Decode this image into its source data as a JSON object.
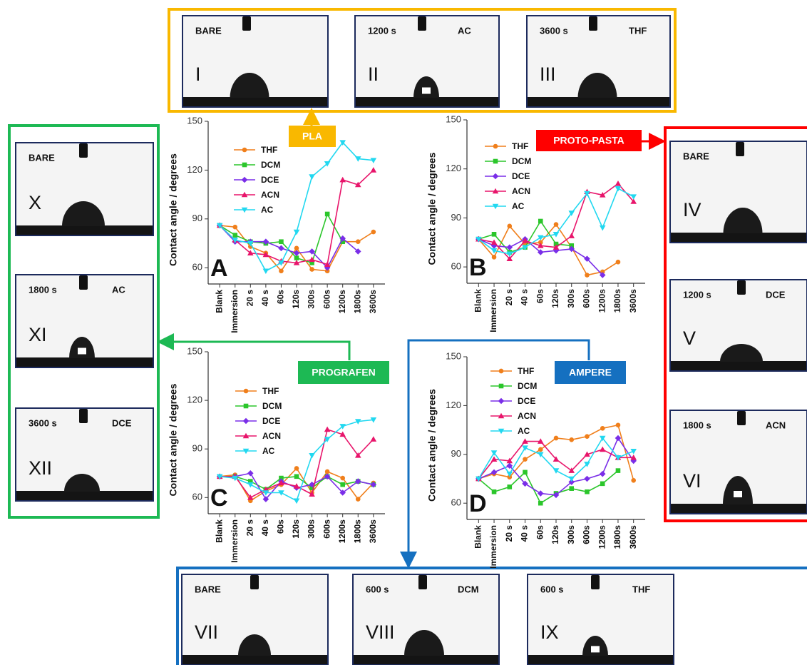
{
  "chart_data": [
    {
      "type": "line",
      "panel": "A",
      "tag": "PLA",
      "tag_color": "#f9b800",
      "y_label": "Contact angle / degrees",
      "categories": [
        "Blank",
        "Immersion",
        "20 s",
        "40 s",
        "60s",
        "120s",
        "300s",
        "600s",
        "1200s",
        "1800s",
        "3600s"
      ],
      "ylim": [
        50,
        150
      ],
      "yticks": [
        60,
        90,
        120,
        150
      ],
      "series": [
        {
          "name": "THF",
          "color": "#f07f1b",
          "marker": "circle",
          "values": [
            86,
            85,
            73,
            69,
            58,
            72,
            59,
            58,
            76,
            76,
            82
          ]
        },
        {
          "name": "DCM",
          "color": "#2bc62b",
          "marker": "square",
          "values": [
            86,
            80,
            76,
            75,
            76,
            66,
            63,
            93,
            76,
            null,
            null
          ]
        },
        {
          "name": "DCE",
          "color": "#7a2ee8",
          "marker": "diamond",
          "values": [
            86,
            76,
            76,
            76,
            72,
            69,
            70,
            60,
            78,
            70,
            null
          ]
        },
        {
          "name": "ACN",
          "color": "#e8156b",
          "marker": "triangle",
          "values": [
            86,
            77,
            69,
            68,
            64,
            63,
            65,
            62,
            114,
            111,
            120
          ]
        },
        {
          "name": "AC",
          "color": "#22d8f0",
          "marker": "triangle-down",
          "values": [
            86,
            77,
            75,
            58,
            63,
            82,
            116,
            124,
            137,
            127,
            126
          ]
        }
      ]
    },
    {
      "type": "line",
      "panel": "B",
      "tag": "PROTO-PASTA",
      "tag_color": "#ff0000",
      "y_label": "Contact angle / degrees",
      "categories": [
        "Blank",
        "Immersion",
        "20 s",
        "40 s",
        "60s",
        "120s",
        "300s",
        "600s",
        "1200s",
        "1800s",
        "3600s"
      ],
      "ylim": [
        50,
        150
      ],
      "yticks": [
        60,
        90,
        120,
        150
      ],
      "series": [
        {
          "name": "THF",
          "color": "#f07f1b",
          "marker": "circle",
          "values": [
            77,
            66,
            85,
            74,
            75,
            86,
            72,
            55,
            57,
            63,
            null
          ]
        },
        {
          "name": "DCM",
          "color": "#2bc62b",
          "marker": "square",
          "values": [
            77,
            80,
            69,
            72,
            88,
            74,
            73,
            null,
            null,
            null,
            null
          ]
        },
        {
          "name": "DCE",
          "color": "#7a2ee8",
          "marker": "diamond",
          "values": [
            77,
            73,
            72,
            77,
            69,
            70,
            71,
            65,
            55,
            null,
            null
          ]
        },
        {
          "name": "ACN",
          "color": "#e8156b",
          "marker": "triangle",
          "values": [
            77,
            75,
            65,
            76,
            73,
            72,
            79,
            106,
            104,
            111,
            100
          ]
        },
        {
          "name": "AC",
          "color": "#22d8f0",
          "marker": "triangle-down",
          "values": [
            77,
            70,
            68,
            72,
            78,
            80,
            93,
            105,
            84,
            108,
            103
          ]
        }
      ]
    },
    {
      "type": "line",
      "panel": "C",
      "tag": "PROGRAFEN",
      "tag_color": "#1db954",
      "y_label": "Contact angle / degrees",
      "categories": [
        "Blank",
        "Immersion",
        "20 s",
        "40 s",
        "60s",
        "120s",
        "300s",
        "600s",
        "1200s",
        "1800s",
        "3600s"
      ],
      "ylim": [
        50,
        150
      ],
      "yticks": [
        60,
        90,
        120,
        150
      ],
      "series": [
        {
          "name": "THF",
          "color": "#f07f1b",
          "marker": "circle",
          "values": [
            73,
            74,
            58,
            64,
            68,
            78,
            63,
            76,
            72,
            59,
            69
          ]
        },
        {
          "name": "DCM",
          "color": "#2bc62b",
          "marker": "square",
          "values": [
            73,
            73,
            70,
            65,
            72,
            73,
            66,
            73,
            68,
            70,
            68
          ]
        },
        {
          "name": "DCE",
          "color": "#7a2ee8",
          "marker": "diamond",
          "values": [
            73,
            73,
            75,
            59,
            70,
            66,
            68,
            73,
            63,
            70,
            68
          ]
        },
        {
          "name": "ACN",
          "color": "#e8156b",
          "marker": "triangle",
          "values": [
            73,
            73,
            60,
            65,
            69,
            67,
            62,
            102,
            99,
            86,
            96
          ]
        },
        {
          "name": "AC",
          "color": "#22d8f0",
          "marker": "triangle-down",
          "values": [
            73,
            72,
            68,
            63,
            63,
            58,
            86,
            96,
            104,
            107,
            108
          ]
        }
      ]
    },
    {
      "type": "line",
      "panel": "D",
      "tag": "AMPERE",
      "tag_color": "#1570c0",
      "y_label": "Contact angle / degrees",
      "categories": [
        "Blank",
        "Immersion",
        "20 s",
        "40 s",
        "60s",
        "120s",
        "300s",
        "600s",
        "1200s",
        "1800s",
        "3600s"
      ],
      "ylim": [
        50,
        150
      ],
      "yticks": [
        60,
        90,
        120,
        150
      ],
      "series": [
        {
          "name": "THF",
          "color": "#f07f1b",
          "marker": "circle",
          "values": [
            75,
            78,
            76,
            87,
            93,
            100,
            99,
            101,
            106,
            108,
            74
          ]
        },
        {
          "name": "DCM",
          "color": "#2bc62b",
          "marker": "square",
          "values": [
            75,
            67,
            70,
            79,
            60,
            66,
            69,
            67,
            72,
            80,
            null
          ]
        },
        {
          "name": "DCE",
          "color": "#7a2ee8",
          "marker": "diamond",
          "values": [
            75,
            79,
            83,
            72,
            66,
            65,
            73,
            75,
            78,
            100,
            86
          ]
        },
        {
          "name": "ACN",
          "color": "#e8156b",
          "marker": "triangle",
          "values": [
            75,
            87,
            86,
            98,
            98,
            87,
            80,
            90,
            93,
            88,
            88
          ]
        },
        {
          "name": "AC",
          "color": "#22d8f0",
          "marker": "triangle-down",
          "values": [
            75,
            91,
            78,
            94,
            90,
            80,
            75,
            84,
            100,
            88,
            92
          ]
        }
      ]
    }
  ],
  "photos": [
    {
      "numeral": "I",
      "caption": "BARE"
    },
    {
      "numeral": "II",
      "caption": "1200 s",
      "solvent": "AC"
    },
    {
      "numeral": "III",
      "caption": "3600 s",
      "solvent": "THF"
    },
    {
      "numeral": "IV",
      "caption": "BARE"
    },
    {
      "numeral": "V",
      "caption": "1200 s",
      "solvent": "DCE"
    },
    {
      "numeral": "VI",
      "caption": "1800 s",
      "solvent": "ACN"
    },
    {
      "numeral": "VII",
      "caption": "BARE"
    },
    {
      "numeral": "VIII",
      "caption": "600 s",
      "solvent": "DCM"
    },
    {
      "numeral": "IX",
      "caption": "600 s",
      "solvent": "THF"
    },
    {
      "numeral": "X",
      "caption": "BARE"
    },
    {
      "numeral": "XI",
      "caption": "1800 s",
      "solvent": "AC"
    },
    {
      "numeral": "XII",
      "caption": "3600 s",
      "solvent": "DCE"
    }
  ]
}
